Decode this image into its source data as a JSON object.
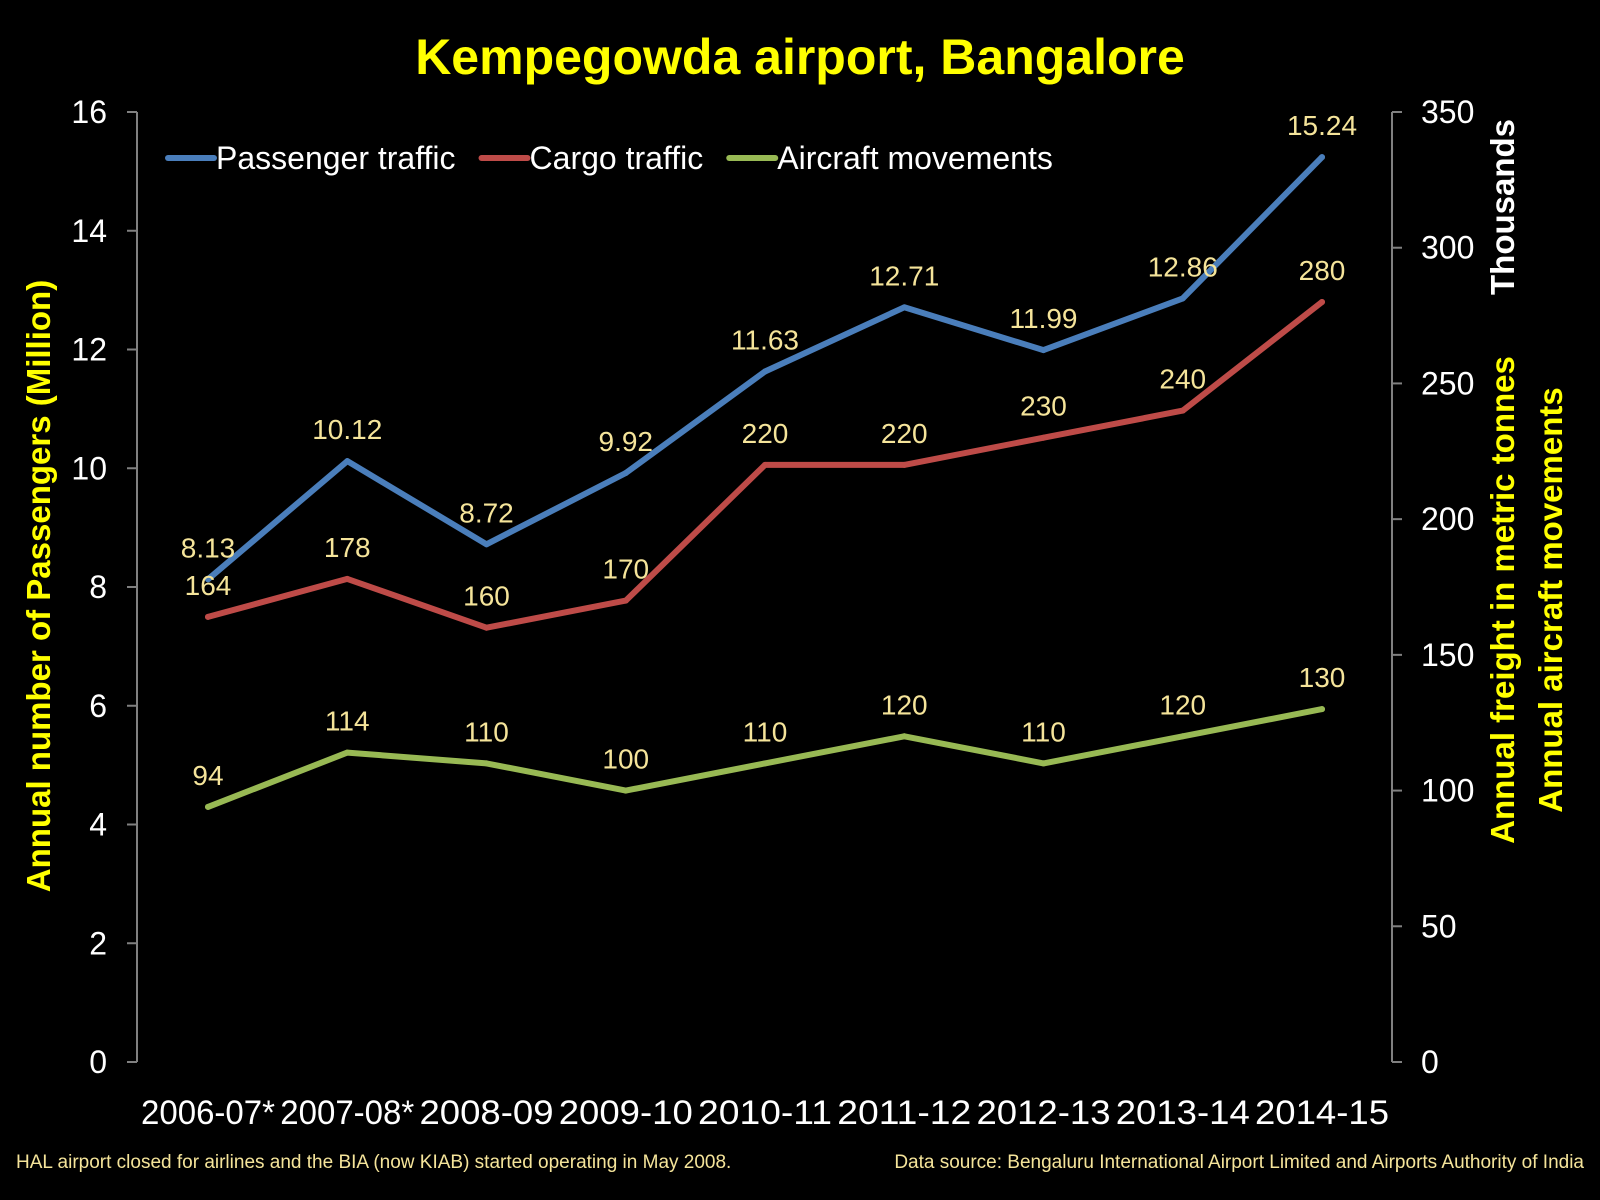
{
  "chart_data": {
    "type": "line",
    "title": "Kempegowda airport, Bangalore",
    "categories": [
      "2006-07*",
      "2007-08*",
      "2008-09",
      "2009-10",
      "2010-11",
      "2011-12",
      "2012-13",
      "2013-14",
      "2014-15"
    ],
    "ylabel_left": "Annual number of Passengers (Million)",
    "ylabel_right_line1": "Annual freight in metric tonnes",
    "ylabel_right_line2": "Annual aircraft movements",
    "right_unit_label": "Thousands",
    "ylim_left": [
      0,
      16
    ],
    "yticks_left": [
      "0",
      "2",
      "4",
      "6",
      "8",
      "10",
      "12",
      "14",
      "16"
    ],
    "ylim_right": [
      0,
      350
    ],
    "yticks_right": [
      "0",
      "50",
      "100",
      "150",
      "200",
      "250",
      "300",
      "350"
    ],
    "grid": false,
    "legend_position": "top-left",
    "series": [
      {
        "name": "Passenger traffic",
        "axis": "left",
        "color": "#4a7ebb",
        "values": [
          8.13,
          10.12,
          8.72,
          9.92,
          11.63,
          12.71,
          11.99,
          12.86,
          15.24
        ],
        "labels": [
          "8.13",
          "10.12",
          "8.72",
          "9.92",
          "11.63",
          "12.71",
          "11.99",
          "12.86",
          "15.24"
        ]
      },
      {
        "name": "Cargo traffic",
        "axis": "right",
        "color": "#be4b48",
        "values": [
          164,
          178,
          160,
          170,
          220,
          220,
          230,
          240,
          280
        ],
        "labels": [
          "164",
          "178",
          "160",
          "170",
          "220",
          "220",
          "230",
          "240",
          "280"
        ]
      },
      {
        "name": "Aircraft movements",
        "axis": "right",
        "color": "#98b954",
        "values": [
          94,
          114,
          110,
          100,
          110,
          120,
          110,
          120,
          130
        ],
        "labels": [
          "94",
          "114",
          "110",
          "100",
          "110",
          "120",
          "110",
          "120",
          "130"
        ]
      }
    ],
    "footnote_left": "HAL airport closed for airlines and the BIA (now KIAB) started operating in May 2008.",
    "footnote_right": "Data source: Bengaluru International Airport Limited and Airports Authority of India"
  },
  "colors": {
    "background": "#000000",
    "title": "#ffff00",
    "axis_label": "#ffff00",
    "data_label": "#f5e49a",
    "footnote": "#f5e49a",
    "axis_line": "#808080",
    "tick_text": "#ffffff"
  }
}
